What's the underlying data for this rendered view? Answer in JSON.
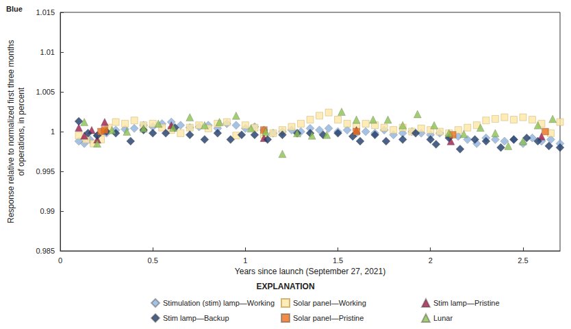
{
  "chart_data": {
    "type": "scatter",
    "title": "Blue",
    "x_label": "Years since launch (September 27, 2021)",
    "y_label": "Response relative to normalized first three months\nof operations, in percent",
    "legend_title": "EXPLANATION",
    "xlim": [
      0,
      2.7
    ],
    "xticks": [
      0,
      0.5,
      1,
      1.5,
      2,
      2.5
    ],
    "ylim": [
      0.985,
      1.015
    ],
    "yticks": [
      0.985,
      0.99,
      0.995,
      1,
      1.005,
      1.01,
      1.015
    ],
    "grid": false,
    "legend": "bottom",
    "series": [
      {
        "name": "Stimulation (stim) lamp—Working",
        "color": "#8fb3de",
        "marker": "diamond",
        "x": [
          0.1,
          0.13,
          0.16,
          0.2,
          0.25,
          0.3,
          0.35,
          0.4,
          0.45,
          0.5,
          0.55,
          0.6,
          0.65,
          0.7,
          0.75,
          0.8,
          0.85,
          0.9,
          0.95,
          1.0,
          1.05,
          1.1,
          1.15,
          1.2,
          1.25,
          1.3,
          1.35,
          1.4,
          1.45,
          1.5,
          1.55,
          1.6,
          1.65,
          1.7,
          1.75,
          1.8,
          1.85,
          1.9,
          1.95,
          2.0,
          2.05,
          2.1,
          2.15,
          2.2,
          2.25,
          2.3,
          2.35,
          2.4,
          2.45,
          2.5,
          2.55,
          2.6,
          2.65,
          2.7,
          2.73
        ],
        "values": [
          0.9988,
          0.9985,
          0.999,
          0.9995,
          0.9998,
          1.0002,
          1.0003,
          1.0004,
          1.0008,
          1.0006,
          1.001,
          1.0012,
          1.0008,
          1.0005,
          1.0006,
          1.0008,
          1.0004,
          1.001,
          1.0008,
          1.0004,
          1.0006,
          1.0002,
          0.9998,
          1.0,
          1.0002,
          1.0,
          1.0004,
          1.0002,
          1.0004,
          1.0,
          1.0002,
          0.9998,
          1.0,
          0.9998,
          1.0002,
          0.9996,
          0.9998,
          1.0,
          0.9998,
          0.9996,
          0.9998,
          0.9995,
          0.9994,
          0.999,
          0.9985,
          0.9992,
          0.999,
          0.9988,
          0.999,
          0.9985,
          0.9992,
          0.9988,
          0.999,
          0.9985,
          0.9982
        ]
      },
      {
        "name": "Solar panel—Working",
        "color": "#fde7a6",
        "marker": "square",
        "x": [
          0.1,
          0.14,
          0.18,
          0.22,
          0.26,
          0.3,
          0.35,
          0.4,
          0.45,
          0.5,
          0.55,
          0.6,
          0.65,
          0.7,
          0.75,
          0.8,
          0.85,
          0.9,
          0.95,
          1.0,
          1.05,
          1.1,
          1.15,
          1.2,
          1.25,
          1.3,
          1.35,
          1.4,
          1.45,
          1.5,
          1.55,
          1.6,
          1.65,
          1.7,
          1.75,
          1.8,
          1.85,
          1.9,
          1.95,
          2.0,
          2.05,
          2.1,
          2.15,
          2.2,
          2.25,
          2.3,
          2.35,
          2.4,
          2.45,
          2.5,
          2.55,
          2.6,
          2.65,
          2.7,
          2.73
        ],
        "values": [
          0.9995,
          0.999,
          0.9985,
          0.999,
          1.0005,
          1.0012,
          1.001,
          1.0014,
          1.0008,
          1.001,
          1.0005,
          1.0002,
          0.9998,
          1.0005,
          1.0008,
          1.0004,
          1.001,
          1.0012,
          0.9995,
          1.0008,
          1.0005,
          0.9996,
          0.9998,
          1.0002,
          1.0006,
          1.001,
          1.0015,
          1.002,
          1.0024,
          1.0015,
          1.001,
          1.0006,
          1.001,
          1.0008,
          1.0005,
          1.0002,
          1.0005,
          1.0,
          1.0004,
          1.0002,
          1.0,
          0.9998,
          1.0002,
          1.0005,
          1.0008,
          1.0014,
          1.0016,
          1.0018,
          1.0015,
          1.0018,
          1.0015,
          1.001,
          0.9998,
          1.0012,
          1.0008
        ]
      },
      {
        "name": "Stim lamp—Pristine",
        "color": "#9b1c4a",
        "marker": "triangle",
        "x": [
          0.1,
          0.13,
          0.17,
          0.2,
          0.24,
          0.6,
          1.1,
          1.6,
          2.11,
          2.6
        ],
        "values": [
          1.0005,
          0.9995,
          1.0002,
          0.999,
          1.0012,
          1.0008,
          0.9992,
          1.0002,
          0.9988,
          0.9994
        ]
      },
      {
        "name": "Stim lamp—Backup",
        "color": "#1f3a68",
        "marker": "diamond",
        "x": [
          0.1,
          0.15,
          0.2,
          0.25,
          0.3,
          0.38,
          0.45,
          0.5,
          0.57,
          0.62,
          0.7,
          0.78,
          0.85,
          0.92,
          0.98,
          1.05,
          1.12,
          1.2,
          1.28,
          1.35,
          1.42,
          1.5,
          1.58,
          1.62,
          1.7,
          1.76,
          1.85,
          1.92,
          2.0,
          2.03,
          2.1,
          2.16,
          2.24,
          2.3,
          2.38,
          2.45,
          2.52,
          2.58,
          2.64,
          2.7
        ],
        "values": [
          1.0013,
          0.9998,
          0.9995,
          1.0,
          0.9998,
          0.9988,
          1.0002,
          0.9998,
          0.9998,
          1.0005,
          0.9996,
          0.999,
          0.9998,
          0.999,
          0.9996,
          0.9996,
          0.999,
          0.9996,
          0.9998,
          0.9998,
          0.9996,
          0.9998,
          0.9994,
          0.9988,
          0.9996,
          0.9988,
          0.999,
          0.9998,
          0.999,
          0.9984,
          0.9992,
          0.9978,
          0.999,
          0.9988,
          0.998,
          0.999,
          0.9992,
          0.9988,
          0.9982,
          0.998
        ]
      },
      {
        "name": "Solar panel—Pristine",
        "color": "#e9711c",
        "marker": "square",
        "x": [
          0.22,
          0.24,
          1.1,
          1.6,
          2.12,
          2.62
        ],
        "values": [
          1.0,
          1.0002,
          1.0002,
          1.0,
          0.9996,
          1.0
        ]
      },
      {
        "name": "Lunar",
        "color": "#8cc152",
        "marker": "triangle",
        "x": [
          0.13,
          0.2,
          0.28,
          0.36,
          0.45,
          0.53,
          0.61,
          0.7,
          0.78,
          0.86,
          0.95,
          1.03,
          1.11,
          1.2,
          1.28,
          1.36,
          1.44,
          1.52,
          1.6,
          1.69,
          1.77,
          1.85,
          1.93,
          2.02,
          2.1,
          2.18,
          2.27,
          2.35,
          2.42,
          2.5,
          2.58,
          2.66,
          2.73
        ],
        "values": [
          1.0012,
          0.9985,
          1.0002,
          1.0,
          1.0004,
          1.001,
          1.0005,
          1.0018,
          1.0008,
          1.0012,
          1.002,
          1.0004,
          1.0,
          0.9972,
          0.9998,
          0.9995,
          0.9996,
          1.0025,
          1.0015,
          1.0015,
          1.0015,
          1.0008,
          1.0022,
          1.0008,
          0.9998,
          0.9997,
          1.0005,
          0.9998,
          0.9982,
          0.9988,
          1.0008,
          1.0016,
          1.001
        ]
      }
    ]
  }
}
